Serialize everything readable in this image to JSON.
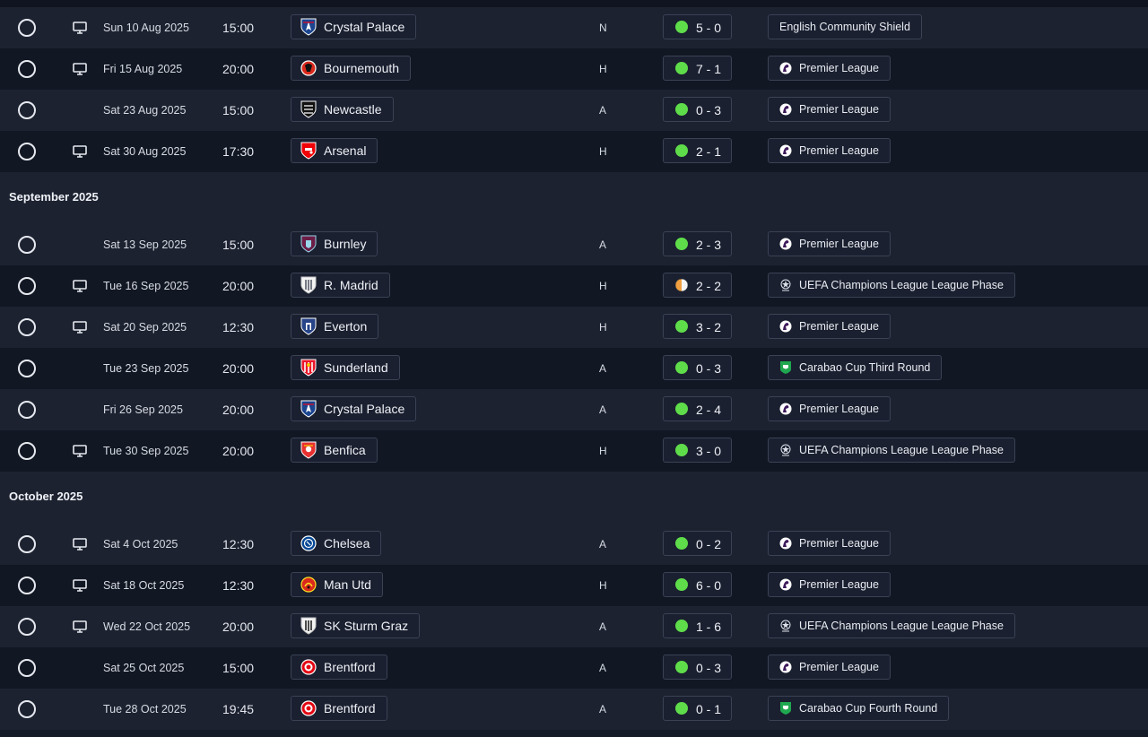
{
  "colors": {
    "win": "#5fdc4a",
    "draw_left": "#f0a040",
    "draw_right": "#f4f4f4",
    "premier_league": "#3d195b",
    "carabao": "#1fa84f"
  },
  "sections": [
    {
      "header": "",
      "fixtures": [
        {
          "tv": true,
          "date": "Sun 10 Aug 2025",
          "time": "15:00",
          "opponent": "Crystal Palace",
          "crest": "crystal-palace-crest",
          "venue": "N",
          "result": "win",
          "score": "5 - 0",
          "competition": "English Community Shield",
          "comp_icon": ""
        },
        {
          "tv": true,
          "date": "Fri 15 Aug 2025",
          "time": "20:00",
          "opponent": "Bournemouth",
          "crest": "bournemouth-crest",
          "venue": "H",
          "result": "win",
          "score": "7 - 1",
          "competition": "Premier League",
          "comp_icon": "premier-league-logo"
        },
        {
          "tv": false,
          "date": "Sat 23 Aug 2025",
          "time": "15:00",
          "opponent": "Newcastle",
          "crest": "newcastle-crest",
          "venue": "A",
          "result": "win",
          "score": "0 - 3",
          "competition": "Premier League",
          "comp_icon": "premier-league-logo"
        },
        {
          "tv": true,
          "date": "Sat 30 Aug 2025",
          "time": "17:30",
          "opponent": "Arsenal",
          "crest": "arsenal-crest",
          "venue": "H",
          "result": "win",
          "score": "2 - 1",
          "competition": "Premier League",
          "comp_icon": "premier-league-logo"
        }
      ]
    },
    {
      "header": "September 2025",
      "fixtures": [
        {
          "tv": false,
          "date": "Sat 13 Sep 2025",
          "time": "15:00",
          "opponent": "Burnley",
          "crest": "burnley-crest",
          "venue": "A",
          "result": "win",
          "score": "2 - 3",
          "competition": "Premier League",
          "comp_icon": "premier-league-logo"
        },
        {
          "tv": true,
          "date": "Tue 16 Sep 2025",
          "time": "20:00",
          "opponent": "R. Madrid",
          "crest": "real-madrid-crest",
          "venue": "H",
          "result": "draw",
          "score": "2 - 2",
          "competition": "UEFA Champions League League Phase",
          "comp_icon": "champions-league-logo"
        },
        {
          "tv": true,
          "date": "Sat 20 Sep 2025",
          "time": "12:30",
          "opponent": "Everton",
          "crest": "everton-crest",
          "venue": "H",
          "result": "win",
          "score": "3 - 2",
          "competition": "Premier League",
          "comp_icon": "premier-league-logo"
        },
        {
          "tv": false,
          "date": "Tue 23 Sep 2025",
          "time": "20:00",
          "opponent": "Sunderland",
          "crest": "sunderland-crest",
          "venue": "A",
          "result": "win",
          "score": "0 - 3",
          "competition": "Carabao Cup Third Round",
          "comp_icon": "carabao-cup-logo"
        },
        {
          "tv": false,
          "date": "Fri 26 Sep 2025",
          "time": "20:00",
          "opponent": "Crystal Palace",
          "crest": "crystal-palace-crest",
          "venue": "A",
          "result": "win",
          "score": "2 - 4",
          "competition": "Premier League",
          "comp_icon": "premier-league-logo"
        },
        {
          "tv": true,
          "date": "Tue 30 Sep 2025",
          "time": "20:00",
          "opponent": "Benfica",
          "crest": "benfica-crest",
          "venue": "H",
          "result": "win",
          "score": "3 - 0",
          "competition": "UEFA Champions League League Phase",
          "comp_icon": "champions-league-logo"
        }
      ]
    },
    {
      "header": "October 2025",
      "fixtures": [
        {
          "tv": true,
          "date": "Sat 4 Oct 2025",
          "time": "12:30",
          "opponent": "Chelsea",
          "crest": "chelsea-crest",
          "venue": "A",
          "result": "win",
          "score": "0 - 2",
          "competition": "Premier League",
          "comp_icon": "premier-league-logo"
        },
        {
          "tv": true,
          "date": "Sat 18 Oct 2025",
          "time": "12:30",
          "opponent": "Man Utd",
          "crest": "man-utd-crest",
          "venue": "H",
          "result": "win",
          "score": "6 - 0",
          "competition": "Premier League",
          "comp_icon": "premier-league-logo"
        },
        {
          "tv": true,
          "date": "Wed 22 Oct 2025",
          "time": "20:00",
          "opponent": "SK Sturm Graz",
          "crest": "sturm-graz-crest",
          "venue": "A",
          "result": "win",
          "score": "1 - 6",
          "competition": "UEFA Champions League League Phase",
          "comp_icon": "champions-league-logo"
        },
        {
          "tv": false,
          "date": "Sat 25 Oct 2025",
          "time": "15:00",
          "opponent": "Brentford",
          "crest": "brentford-crest",
          "venue": "A",
          "result": "win",
          "score": "0 - 3",
          "competition": "Premier League",
          "comp_icon": "premier-league-logo"
        },
        {
          "tv": false,
          "date": "Tue 28 Oct 2025",
          "time": "19:45",
          "opponent": "Brentford",
          "crest": "brentford-crest",
          "venue": "A",
          "result": "win",
          "score": "0 - 1",
          "competition": "Carabao Cup Fourth Round",
          "comp_icon": "carabao-cup-logo"
        }
      ]
    }
  ]
}
